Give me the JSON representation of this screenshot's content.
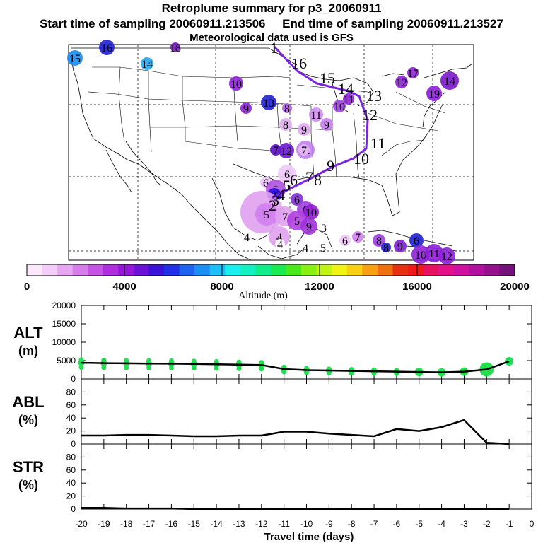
{
  "header": {
    "title": "Retroplume summary for p3_20060911",
    "start_label": "Start time of sampling 20060911.213506",
    "end_label": "End time of sampling 20060911.213527",
    "met_label": "Meteorological data used is GFS"
  },
  "map": {
    "trajectory_color": "#7a24e0",
    "trajectory_labels": [
      "1",
      "16",
      "15",
      "14",
      "13",
      "12",
      "11",
      "10",
      "9",
      "8",
      "7",
      "6",
      "5",
      "4",
      "3",
      "2"
    ],
    "clusters": [
      {
        "label": "15",
        "color": "#1a8cf0"
      },
      {
        "label": "16",
        "color": "#2020d0"
      },
      {
        "label": "14",
        "color": "#2aa8f0"
      },
      {
        "label": "18",
        "color": "#7a18c8"
      },
      {
        "label": "10",
        "color": "#8e20d8"
      },
      {
        "label": "13",
        "color": "#2020d0"
      },
      {
        "label": "9",
        "color": "#8e20d8"
      },
      {
        "label": "8",
        "color": "#b460e8"
      },
      {
        "label": "9",
        "color": "#e0a8f0"
      },
      {
        "label": "10",
        "color": "#a040e0"
      },
      {
        "label": "11",
        "color": "#d090f0"
      },
      {
        "label": "9",
        "color": "#c880f0"
      },
      {
        "label": "8",
        "color": "#e0b0f0"
      },
      {
        "label": "7",
        "color": "#5a10c0"
      },
      {
        "label": "12",
        "color": "#6a18d0"
      },
      {
        "label": "11",
        "color": "#c080f0"
      },
      {
        "label": "6",
        "color": "#f0c8f8"
      },
      {
        "label": "7",
        "color": "#e8b8f8"
      },
      {
        "label": "6",
        "color": "#e8c0f8"
      },
      {
        "label": "5",
        "color": "#b050e0"
      },
      {
        "label": "4",
        "color": "#2a10e0"
      },
      {
        "label": "6",
        "color": "#8030d0"
      },
      {
        "label": "6",
        "color": "#a040e0"
      },
      {
        "label": "10",
        "color": "#9020d0"
      },
      {
        "label": "3",
        "color": "#e0a0f0"
      },
      {
        "label": "5",
        "color": "#d080f0"
      },
      {
        "label": "7",
        "color": "#e0a0f0"
      },
      {
        "label": "5",
        "color": "#b040e0"
      },
      {
        "label": "9",
        "color": "#a030d8"
      },
      {
        "label": "3",
        "color": "#ffffff"
      },
      {
        "label": "4",
        "color": "#e0a0f0"
      },
      {
        "label": "4",
        "color": "#ffffff"
      },
      {
        "label": "4",
        "color": "#ffffff"
      },
      {
        "label": "5",
        "color": "#ffffff"
      },
      {
        "label": "4",
        "color": "#ffffff"
      },
      {
        "label": "6",
        "color": "#f0c8f8"
      },
      {
        "label": "7",
        "color": "#d080f0"
      },
      {
        "label": "8",
        "color": "#a040e0"
      },
      {
        "label": "6",
        "color": "#2020d0"
      },
      {
        "label": "9",
        "color": "#8020d0"
      },
      {
        "label": "8",
        "color": "#2020d0"
      },
      {
        "label": "10",
        "color": "#8e20d8"
      },
      {
        "label": "11",
        "color": "#8e20d8"
      },
      {
        "label": "12",
        "color": "#8e20d8"
      },
      {
        "label": "12",
        "color": "#8e20d8"
      },
      {
        "label": "17",
        "color": "#8e20d8"
      },
      {
        "label": "19",
        "color": "#8e20d8"
      },
      {
        "label": "11",
        "color": "#8e20d8"
      },
      {
        "label": "14",
        "color": "#7a18c8"
      }
    ]
  },
  "colorbar": {
    "tick_labels": [
      "0",
      "4000",
      "8000",
      "12000",
      "16000",
      "20000"
    ],
    "caption": "Altitude (m)",
    "colors": [
      "#fbe8fb",
      "#f3cdf7",
      "#e7a6f2",
      "#d77ceb",
      "#c553e6",
      "#b02ee0",
      "#9616db",
      "#6a10d8",
      "#3a12d8",
      "#2030e8",
      "#1d62f0",
      "#1b90f4",
      "#1cc0f8",
      "#18f0f0",
      "#12f2c0",
      "#10ee8c",
      "#18ea50",
      "#48ea18",
      "#88f010",
      "#c0f410",
      "#f0f410",
      "#f8d010",
      "#f8a010",
      "#f07010",
      "#e83010",
      "#f01818",
      "#e81060",
      "#e4108c",
      "#d010a0",
      "#b410a0",
      "#96108e",
      "#74107a"
    ]
  },
  "plots": {
    "alt": {
      "label_line1": "ALT",
      "label_line2": "(m)",
      "ticks": [
        "20000",
        "15000",
        "10000",
        "5000",
        "0"
      ],
      "ymax": 20000,
      "days": [
        -20,
        -19,
        -18,
        -17,
        -16,
        -15,
        -14,
        -13,
        -12,
        -11,
        -10,
        -9,
        -8,
        -7,
        -6,
        -5,
        -4,
        -3,
        -2,
        -1
      ],
      "values": [
        4400,
        4300,
        4250,
        4200,
        4150,
        4100,
        4000,
        3900,
        3800,
        2700,
        2400,
        2300,
        2200,
        2100,
        2000,
        1900,
        1800,
        2000,
        2600,
        4800
      ],
      "dots_color": "#20e050"
    },
    "abl": {
      "label_line1": "ABL",
      "label_line2": "(%)",
      "ticks": [
        "80",
        "60",
        "40",
        "20",
        "0"
      ],
      "ymax": 100,
      "values": [
        13,
        13,
        14,
        14,
        13,
        12,
        12,
        13,
        13,
        19,
        19,
        16,
        14,
        12,
        23,
        20,
        26,
        37,
        2,
        0
      ]
    },
    "str": {
      "label_line1": "STR",
      "label_line2": "(%)",
      "ticks": [
        "80",
        "60",
        "40",
        "20",
        "0"
      ],
      "ymax": 100,
      "values": [
        2,
        2,
        1,
        1,
        1,
        0,
        0,
        0,
        0,
        0,
        0,
        0,
        0,
        0,
        0,
        0,
        0,
        0,
        0,
        0
      ]
    },
    "x_ticks": [
      "-20",
      "-19",
      "-18",
      "-17",
      "-16",
      "-15",
      "-14",
      "-13",
      "-12",
      "-11",
      "-10",
      "-9",
      "-8",
      "-7",
      "-6",
      "-5",
      "-4",
      "-3",
      "-2",
      "-1",
      "0"
    ],
    "x_label": "Travel time (days)"
  }
}
